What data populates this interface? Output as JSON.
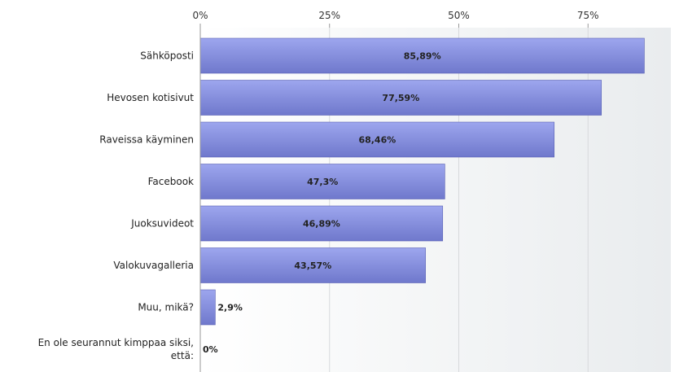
{
  "chart_data": {
    "type": "bar",
    "orientation": "horizontal",
    "title": "",
    "xlabel": "",
    "ylabel": "",
    "xlim": [
      0,
      100
    ],
    "ticks": [
      "0%",
      "25%",
      "50%",
      "75%"
    ],
    "tick_values": [
      0,
      25,
      50,
      75
    ],
    "grid": true,
    "categories": [
      [
        "Sähköposti"
      ],
      [
        "Hevosen kotisivut"
      ],
      [
        "Raveissa käyminen"
      ],
      [
        "Facebook"
      ],
      [
        "Juoksuvideot"
      ],
      [
        "Valokuvagalleria"
      ],
      [
        "Muu, mikä?"
      ],
      [
        "En ole seurannut kimppaa siksi,",
        "että:"
      ]
    ],
    "values": [
      85.89,
      77.59,
      68.46,
      47.3,
      46.89,
      43.57,
      2.9,
      0
    ],
    "value_labels": [
      "85,89%",
      "77,59%",
      "68,46%",
      "47,3%",
      "46,89%",
      "43,57%",
      "2,9%",
      "0%"
    ],
    "colors": {
      "bar_top": "#9da6ee",
      "bar_bottom": "#6f78cc",
      "bar_edge": "#5a62b4",
      "plot_bg_left": "#ffffff",
      "plot_bg_right": "#e9ecee",
      "grid": "#d8dadc",
      "axis": "#999999"
    }
  }
}
